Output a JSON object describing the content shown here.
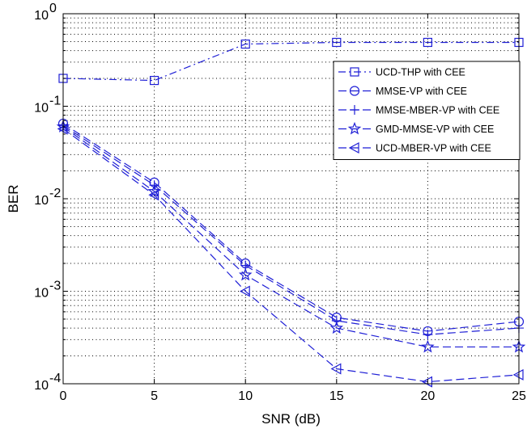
{
  "chart_data": {
    "type": "line",
    "title": "",
    "xlabel": "SNR (dB)",
    "ylabel": "BER",
    "x": [
      0,
      5,
      10,
      15,
      20,
      25
    ],
    "xlim": [
      0,
      25
    ],
    "ylim": [
      0.0001,
      1
    ],
    "yscale": "log",
    "grid": true,
    "legend_position": "top-right",
    "line_color": "#1f1fd6",
    "xticks": [
      "0",
      "5",
      "10",
      "15",
      "20",
      "25"
    ],
    "yticks": [
      {
        "base": "10",
        "exp": "0",
        "value": 1
      },
      {
        "base": "10",
        "exp": "-1",
        "value": 0.1
      },
      {
        "base": "10",
        "exp": "-2",
        "value": 0.01
      },
      {
        "base": "10",
        "exp": "-3",
        "value": 0.001
      },
      {
        "base": "10",
        "exp": "-4",
        "value": 0.0001
      }
    ],
    "series": [
      {
        "name": "UCD-THP with CEE",
        "marker": "square",
        "dash": "dashdot",
        "values": [
          0.2,
          0.19,
          0.47,
          0.49,
          0.49,
          0.49
        ]
      },
      {
        "name": "MMSE-VP with CEE",
        "marker": "circle",
        "dash": "dashed",
        "values": [
          0.065,
          0.015,
          0.002,
          0.00052,
          0.00037,
          0.00047
        ]
      },
      {
        "name": "MMSE-MBER-VP with CEE",
        "marker": "plus",
        "dash": "dashed",
        "values": [
          0.062,
          0.014,
          0.0019,
          0.00048,
          0.00034,
          0.0004
        ]
      },
      {
        "name": "GMD-MMSE-VP with CEE",
        "marker": "star",
        "dash": "dashed",
        "values": [
          0.06,
          0.012,
          0.0015,
          0.0004,
          0.00025,
          0.00025
        ]
      },
      {
        "name": "UCD-MBER-VP with CEE",
        "marker": "triangle-left",
        "dash": "dashed",
        "values": [
          0.057,
          0.011,
          0.001,
          0.000145,
          0.000105,
          0.000125
        ]
      }
    ]
  }
}
